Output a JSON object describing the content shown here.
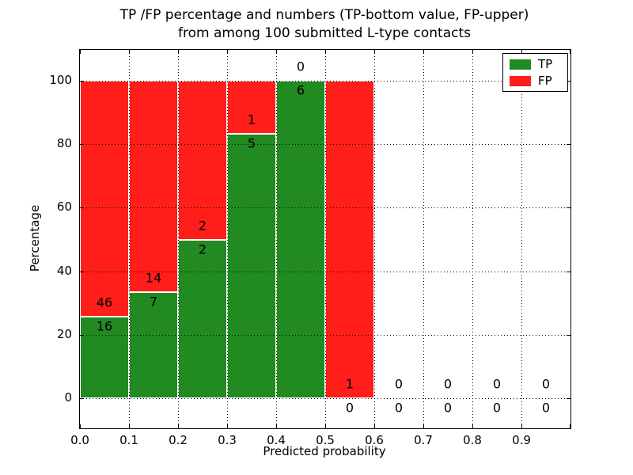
{
  "chart_data": {
    "type": "bar",
    "stacked": true,
    "title_lines": [
      "TP /FP percentage and numbers (TP-bottom value, FP-upper)",
      "from among 100 submitted L-type contacts"
    ],
    "xlabel": "Predicted probability",
    "ylabel": "Percentage",
    "x_tick_labels": [
      "0.0",
      "0.1",
      "0.2",
      "0.3",
      "0.4",
      "0.5",
      "0.6",
      "0.7",
      "0.8",
      "0.9"
    ],
    "y_tick_values": [
      0,
      20,
      40,
      60,
      80,
      100
    ],
    "xlim": [
      0.0,
      1.0
    ],
    "ylim": [
      -10.5,
      112
    ],
    "grid": "dotted",
    "annotation_rule": "FP count shown above TP/FP boundary, TP count shown below it",
    "bins": [
      {
        "x_start": 0.0,
        "x_end": 0.1,
        "tp": 16,
        "fp": 46,
        "tp_pct": 25.8
      },
      {
        "x_start": 0.1,
        "x_end": 0.2,
        "tp": 7,
        "fp": 14,
        "tp_pct": 33.3
      },
      {
        "x_start": 0.2,
        "x_end": 0.3,
        "tp": 2,
        "fp": 2,
        "tp_pct": 50.0
      },
      {
        "x_start": 0.3,
        "x_end": 0.4,
        "tp": 5,
        "fp": 1,
        "tp_pct": 83.3
      },
      {
        "x_start": 0.4,
        "x_end": 0.5,
        "tp": 6,
        "fp": 0,
        "tp_pct": 100.0
      },
      {
        "x_start": 0.5,
        "x_end": 0.6,
        "tp": 0,
        "fp": 1,
        "tp_pct": 0.0
      },
      {
        "x_start": 0.6,
        "x_end": 0.7,
        "tp": 0,
        "fp": 0,
        "tp_pct": null
      },
      {
        "x_start": 0.7,
        "x_end": 0.8,
        "tp": 0,
        "fp": 0,
        "tp_pct": null
      },
      {
        "x_start": 0.8,
        "x_end": 0.9,
        "tp": 0,
        "fp": 0,
        "tp_pct": null
      },
      {
        "x_start": 0.9,
        "x_end": 1.0,
        "tp": 0,
        "fp": 0,
        "tp_pct": null
      }
    ],
    "colors": {
      "tp": "#218a21",
      "fp": "#ff1e19",
      "bar_edge": "#ffffff",
      "grid": "#000000",
      "frame": "#000000"
    },
    "legend": {
      "position": "upper right",
      "entries": [
        {
          "label": "TP",
          "color": "#218a21"
        },
        {
          "label": "FP",
          "color": "#ff1e19"
        }
      ]
    }
  }
}
